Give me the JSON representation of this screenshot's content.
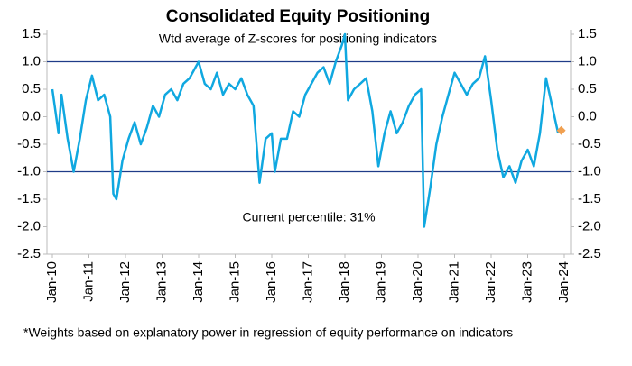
{
  "chart_data": {
    "type": "line",
    "title": "Consolidated Equity Positioning",
    "subtitle": "Wtd average of Z-scores for positioning indicators",
    "annotation": "Current percentile: 31%",
    "footnote": "*Weights based on explanatory power in regression of equity performance on indicators",
    "x": [
      "2010-01",
      "2010-03",
      "2010-04",
      "2010-06",
      "2010-08",
      "2010-10",
      "2010-12",
      "2011-02",
      "2011-04",
      "2011-06",
      "2011-08",
      "2011-09",
      "2011-10",
      "2011-12",
      "2012-02",
      "2012-04",
      "2012-06",
      "2012-08",
      "2012-10",
      "2012-12",
      "2013-02",
      "2013-04",
      "2013-06",
      "2013-08",
      "2013-10",
      "2013-12",
      "2014-01",
      "2014-03",
      "2014-05",
      "2014-07",
      "2014-09",
      "2014-11",
      "2015-01",
      "2015-03",
      "2015-05",
      "2015-07",
      "2015-09",
      "2015-11",
      "2016-01",
      "2016-02",
      "2016-04",
      "2016-06",
      "2016-08",
      "2016-10",
      "2016-12",
      "2017-02",
      "2017-04",
      "2017-06",
      "2017-08",
      "2017-10",
      "2017-12",
      "2018-01",
      "2018-02",
      "2018-04",
      "2018-06",
      "2018-08",
      "2018-10",
      "2018-12",
      "2019-02",
      "2019-04",
      "2019-06",
      "2019-08",
      "2019-10",
      "2019-12",
      "2020-02",
      "2020-03",
      "2020-05",
      "2020-07",
      "2020-09",
      "2020-11",
      "2021-01",
      "2021-03",
      "2021-05",
      "2021-07",
      "2021-09",
      "2021-11",
      "2022-01",
      "2022-03",
      "2022-05",
      "2022-07",
      "2022-09",
      "2022-11",
      "2023-01",
      "2023-03",
      "2023-05",
      "2023-07",
      "2023-09",
      "2023-11"
    ],
    "series": [
      {
        "color": "#10a8e0",
        "values": [
          0.5,
          -0.3,
          0.4,
          -0.4,
          -1.0,
          -0.4,
          0.3,
          0.75,
          0.3,
          0.4,
          0.0,
          -1.4,
          -1.5,
          -0.8,
          -0.4,
          -0.1,
          -0.5,
          -0.2,
          0.2,
          0.0,
          0.4,
          0.5,
          0.3,
          0.6,
          0.7,
          0.9,
          1.0,
          0.6,
          0.5,
          0.8,
          0.4,
          0.6,
          0.5,
          0.7,
          0.4,
          0.2,
          -1.2,
          -0.4,
          -0.3,
          -1.0,
          -0.4,
          -0.4,
          0.1,
          0.0,
          0.4,
          0.6,
          0.8,
          0.9,
          0.6,
          1.0,
          1.3,
          1.5,
          0.3,
          0.5,
          0.6,
          0.7,
          0.1,
          -0.9,
          -0.3,
          0.1,
          -0.3,
          -0.1,
          0.2,
          0.4,
          0.5,
          -2.0,
          -1.3,
          -0.5,
          0.0,
          0.4,
          0.8,
          0.6,
          0.4,
          0.6,
          0.7,
          1.1,
          0.3,
          -0.6,
          -1.1,
          -0.9,
          -1.2,
          -0.8,
          -0.6,
          -0.9,
          -0.3,
          0.7,
          0.2,
          -0.3
        ]
      }
    ],
    "marker": {
      "x": "2023-12",
      "value": -0.25,
      "color": "#f0a050"
    },
    "reference_lines": [
      1,
      -1
    ],
    "reference_color": "#1f3c88",
    "xlim": [
      "2010-01",
      "2024-01"
    ],
    "xticks": [
      {
        "value": "2010-01",
        "label": "Jan-10"
      },
      {
        "value": "2011-01",
        "label": "Jan-11"
      },
      {
        "value": "2012-01",
        "label": "Jan-12"
      },
      {
        "value": "2013-01",
        "label": "Jan-13"
      },
      {
        "value": "2014-01",
        "label": "Jan-14"
      },
      {
        "value": "2015-01",
        "label": "Jan-15"
      },
      {
        "value": "2016-01",
        "label": "Jan-16"
      },
      {
        "value": "2017-01",
        "label": "Jan-17"
      },
      {
        "value": "2018-01",
        "label": "Jan-18"
      },
      {
        "value": "2019-01",
        "label": "Jan-19"
      },
      {
        "value": "2020-01",
        "label": "Jan-20"
      },
      {
        "value": "2021-01",
        "label": "Jan-21"
      },
      {
        "value": "2022-01",
        "label": "Jan-22"
      },
      {
        "value": "2023-01",
        "label": "Jan-23"
      },
      {
        "value": "2024-01",
        "label": "Jan-24"
      }
    ],
    "ylim": [
      -2.5,
      1.5
    ],
    "yticks": [
      1.5,
      {
        "value": 1,
        "label": "1.0"
      },
      0.5,
      {
        "value": 0,
        "label": "0.0"
      },
      -0.5,
      {
        "value": -1,
        "label": "-1.0"
      },
      -1.5,
      {
        "value": -2,
        "label": "-2.0"
      },
      -2.5
    ],
    "y2lim": [
      -2.5,
      1.5
    ],
    "y2ticks": [
      1.5,
      {
        "value": 1,
        "label": "1.0"
      },
      0.5,
      {
        "value": 0,
        "label": "0.0"
      },
      -0.5,
      {
        "value": -1,
        "label": "-1.0"
      },
      -1.5,
      {
        "value": -2,
        "label": "-2.0"
      },
      -2.5
    ]
  }
}
